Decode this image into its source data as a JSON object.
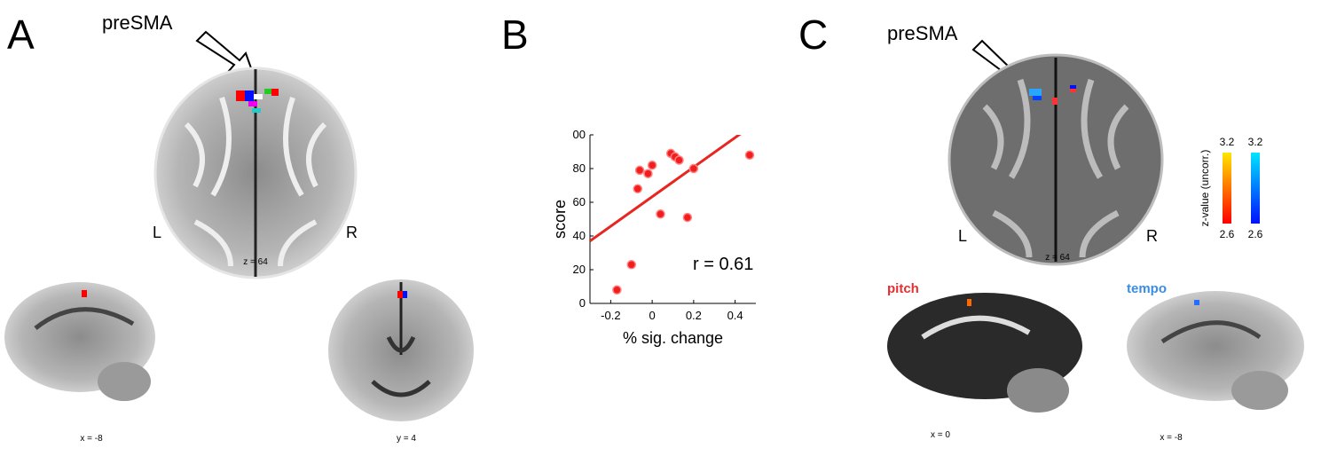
{
  "panel_a": {
    "label": "A",
    "arrow_label": "preSMA",
    "left": "L",
    "right": "R",
    "axial_coord": "z = 64",
    "sagittal_coord": "x = -8",
    "coronal_coord": "y = 4"
  },
  "panel_b": {
    "label": "B"
  },
  "panel_c": {
    "label": "C",
    "arrow_label": "preSMA",
    "left": "L",
    "right": "R",
    "axial_coord": "z = 64",
    "pitch_title": "pitch",
    "tempo_title": "tempo",
    "pitch_coord": "x = 0",
    "tempo_coord": "x = -8",
    "colorbar": {
      "title": "z-value (uncorr.)",
      "warm_max": "3.2",
      "warm_min": "2.6",
      "cool_max": "3.2",
      "cool_min": "2.6"
    }
  },
  "chart_data": {
    "type": "scatter",
    "x_label": "% sig. change",
    "y_label": "score",
    "annotation": "r = 0.61",
    "color": "#f21d1d",
    "x": [
      -0.17,
      -0.1,
      -0.07,
      -0.06,
      -0.02,
      0.0,
      0.04,
      0.09,
      0.11,
      0.13,
      0.17,
      0.2,
      0.47
    ],
    "values": [
      8,
      23,
      68,
      79,
      77,
      82,
      53,
      89,
      87,
      85,
      51,
      80,
      88
    ],
    "fit": {
      "x": [
        -0.3,
        0.43
      ],
      "values": [
        37,
        101
      ],
      "color": "#e8251f"
    },
    "xlim": [
      -0.3,
      0.5
    ],
    "ylim": [
      0,
      100
    ],
    "xticks": [
      -0.2,
      0,
      0.2,
      0.4
    ],
    "yticks": [
      0,
      20,
      40,
      60,
      80,
      {
        "value": 100,
        "label": "00"
      }
    ]
  }
}
